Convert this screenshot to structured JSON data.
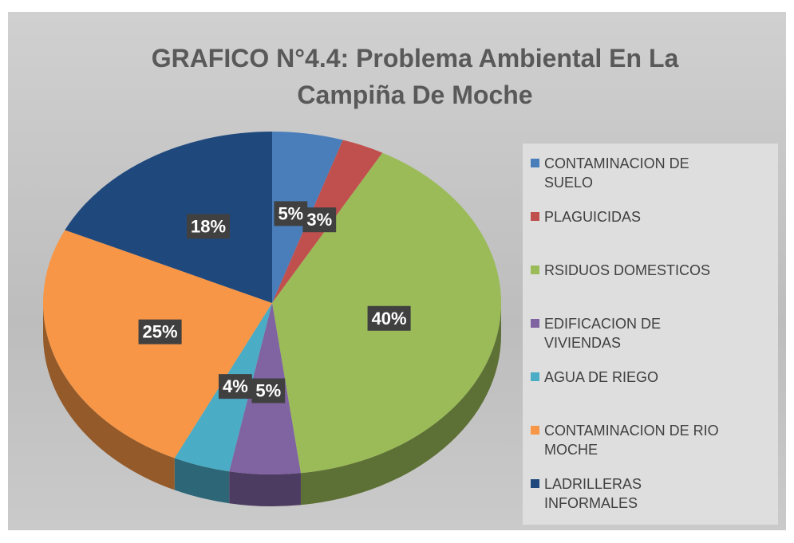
{
  "chart_data": {
    "type": "pie",
    "title": "GRAFICO N°4.4: Problema Ambiental En La Campiña De Moche",
    "categories": [
      "CONTAMINACION DE SUELO",
      "PLAGUICIDAS",
      "RSIDUOS DOMESTICOS",
      "EDIFICACION DE VIVIENDAS",
      "AGUA DE RIEGO",
      "CONTAMINACION DE RIO MOCHE",
      "LADRILLERAS INFORMALES"
    ],
    "values": [
      5,
      3,
      40,
      5,
      4,
      25,
      18
    ],
    "value_labels": [
      "5%",
      "3%",
      "40%",
      "5%",
      "4%",
      "25%",
      "18%"
    ],
    "colors": [
      "#4a7ebb",
      "#c0504d",
      "#9bbb59",
      "#8064a2",
      "#4bacc6",
      "#f79646",
      "#1f497d"
    ],
    "legend": "right"
  }
}
